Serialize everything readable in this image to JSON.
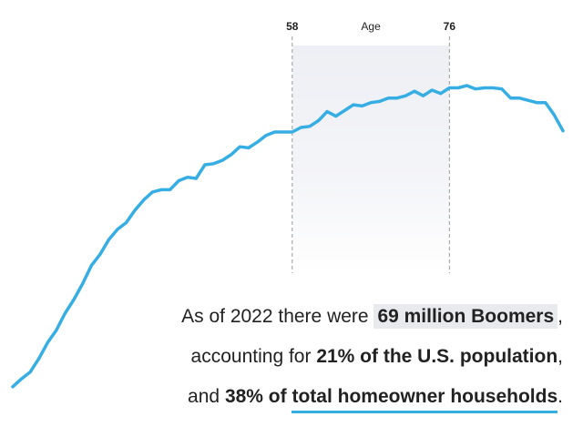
{
  "chart_data": {
    "type": "line",
    "xlabel": "Age",
    "highlight": {
      "start": 58,
      "end": 76,
      "labels": [
        "58",
        "76"
      ]
    },
    "x": [
      26,
      27,
      28,
      29,
      30,
      31,
      32,
      33,
      34,
      35,
      36,
      37,
      38,
      39,
      40,
      41,
      42,
      43,
      44,
      45,
      46,
      47,
      48,
      49,
      50,
      51,
      52,
      53,
      54,
      55,
      56,
      57,
      58,
      59,
      60,
      61,
      62,
      63,
      64,
      65,
      66,
      67,
      68,
      69,
      70,
      71,
      72,
      73,
      74,
      75,
      76,
      77,
      78,
      79,
      80,
      81,
      82,
      83,
      84,
      85,
      86,
      87,
      88,
      89
    ],
    "series": [
      {
        "values": [
          0.05,
          0.12,
          0.18,
          0.3,
          0.44,
          0.55,
          0.7,
          0.82,
          0.96,
          1.12,
          1.22,
          1.35,
          1.44,
          1.5,
          1.61,
          1.7,
          1.77,
          1.79,
          1.79,
          1.87,
          1.9,
          1.89,
          2.01,
          2.02,
          2.05,
          2.1,
          2.17,
          2.16,
          2.21,
          2.27,
          2.3,
          2.3,
          2.3,
          2.34,
          2.35,
          2.4,
          2.48,
          2.44,
          2.49,
          2.54,
          2.53,
          2.56,
          2.57,
          2.6,
          2.6,
          2.62,
          2.66,
          2.62,
          2.67,
          2.64,
          2.69,
          2.69,
          2.71,
          2.68,
          2.69,
          2.69,
          2.68,
          2.6,
          2.6,
          2.58,
          2.56,
          2.56,
          2.45,
          2.31
        ]
      }
    ],
    "color": "#36aee3"
  },
  "caption": {
    "line1_pre": "As of 2022 there were",
    "line1_bold": "69 million Boomers",
    "line1_post": ",",
    "line2_pre": "accounting for",
    "line2_bold": "21% of the U.S. population",
    "line2_post": ",",
    "line3_pre": "and",
    "line3_bold1": "38% of",
    "line3_bold2": "total homeowner households",
    "line3_post": ".",
    "highlight_bg": "#e9eaee",
    "underline_color": "#36aee3"
  }
}
